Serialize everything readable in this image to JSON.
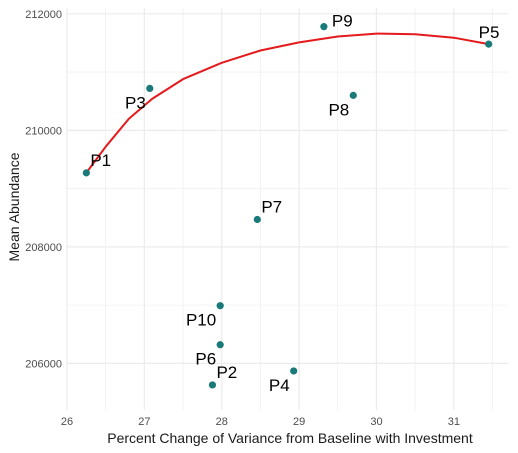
{
  "chart_data": {
    "type": "scatter",
    "title": "",
    "xlabel": "Percent Change of Variance from Baseline with Investment",
    "ylabel": "Mean Abundance",
    "xlim": [
      26,
      31.7
    ],
    "ylim": [
      205200,
      212100
    ],
    "x_ticks": [
      26,
      27,
      28,
      29,
      30,
      31
    ],
    "y_ticks": [
      206000,
      208000,
      210000,
      212000
    ],
    "x_tick_labels": [
      "26",
      "27",
      "28",
      "29",
      "30",
      "31"
    ],
    "y_tick_labels": [
      "206000",
      "208000",
      "210000",
      "212000"
    ],
    "grid": true,
    "legend": "none",
    "colors": {
      "points": "#1a7a7a",
      "curve": "#e41a1c",
      "grid": "#ebebeb"
    },
    "points": [
      {
        "label": "P1",
        "x": 26.25,
        "y": 209270,
        "label_pos": "upper-right"
      },
      {
        "label": "P2",
        "x": 27.88,
        "y": 205630,
        "label_pos": "upper-right"
      },
      {
        "label": "P3",
        "x": 27.07,
        "y": 210720,
        "label_pos": "lower-left"
      },
      {
        "label": "P4",
        "x": 28.93,
        "y": 205870,
        "label_pos": "lower-left"
      },
      {
        "label": "P5",
        "x": 31.45,
        "y": 211480,
        "label_pos": "upper-left"
      },
      {
        "label": "P6",
        "x": 27.98,
        "y": 206320,
        "label_pos": "lower-left"
      },
      {
        "label": "P7",
        "x": 28.46,
        "y": 208470,
        "label_pos": "upper-right"
      },
      {
        "label": "P8",
        "x": 29.7,
        "y": 210600,
        "label_pos": "lower-left"
      },
      {
        "label": "P9",
        "x": 29.32,
        "y": 211780,
        "label_pos": "right"
      },
      {
        "label": "P10",
        "x": 27.98,
        "y": 206990,
        "label_pos": "lower-left"
      }
    ],
    "curve": {
      "x": [
        26.25,
        26.5,
        26.8,
        27.1,
        27.5,
        28.0,
        28.5,
        29.0,
        29.5,
        30.0,
        30.5,
        31.0,
        31.45
      ],
      "y": [
        209270,
        209720,
        210200,
        210540,
        210880,
        211160,
        211370,
        211510,
        211610,
        211660,
        211650,
        211590,
        211480
      ]
    }
  }
}
